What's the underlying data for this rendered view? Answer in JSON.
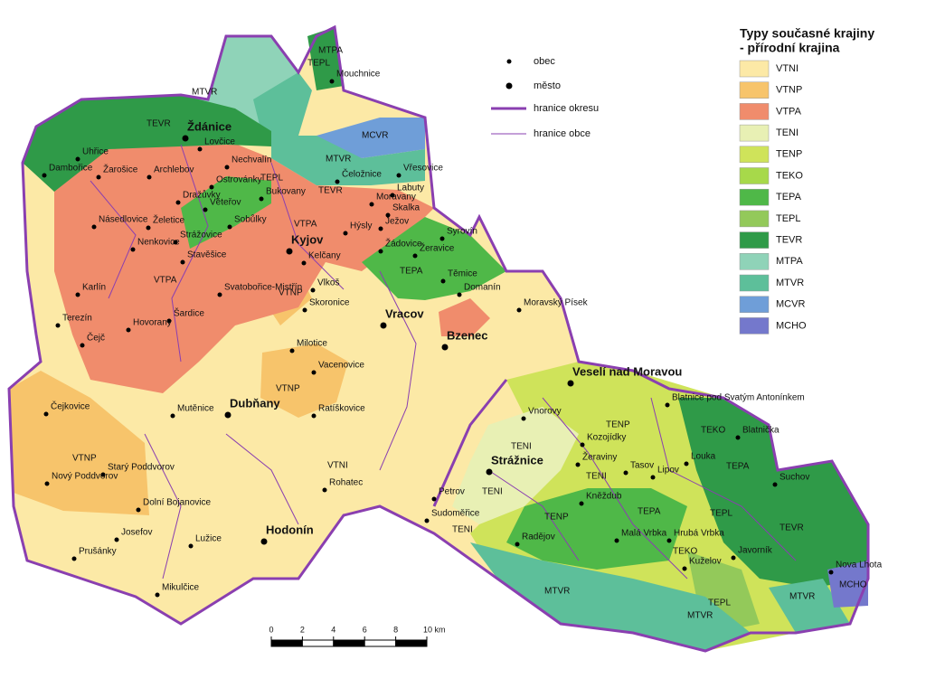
{
  "legend": {
    "title": "Typy současné krajiny",
    "subtitle": "- přírodní krajina",
    "items": [
      {
        "code": "VTNI",
        "color": "#fce9a6"
      },
      {
        "code": "VTNP",
        "color": "#f7c46b"
      },
      {
        "code": "VTPA",
        "color": "#f08c6c"
      },
      {
        "code": "TENI",
        "color": "#e8f0b4"
      },
      {
        "code": "TENP",
        "color": "#cfe35a"
      },
      {
        "code": "TEKO",
        "color": "#a7d94a"
      },
      {
        "code": "TEPA",
        "color": "#4fb848"
      },
      {
        "code": "TEPL",
        "color": "#93c95a"
      },
      {
        "code": "TEVR",
        "color": "#2f9a48"
      },
      {
        "code": "MTPA",
        "color": "#8fd3b8"
      },
      {
        "code": "MTVR",
        "color": "#5dbf9a"
      },
      {
        "code": "MCVR",
        "color": "#6f9ed8"
      },
      {
        "code": "MCHO",
        "color": "#7478cc"
      }
    ]
  },
  "symbols": [
    "obec",
    "město",
    "hranice okresu",
    "hranice obce"
  ],
  "towns": [
    "Ždánice",
    "Kyjov",
    "Vracov",
    "Bzenec",
    "Dubňany",
    "Veselí nad Moravou",
    "Strážnice",
    "Hodonín"
  ],
  "villages": [
    "Mouchnice",
    "Uhřice",
    "Lovčice",
    "Dambořice",
    "Žarošice",
    "Archlebov",
    "Nechvalín",
    "Čeložnice",
    "Vřesovice",
    "Ostrovánky",
    "Bukovany",
    "Labuty",
    "Dražůvky",
    "Věteřov",
    "Moravany",
    "Skalka",
    "Násedlovice",
    "Želetice",
    "Sobůlky",
    "Hýsly",
    "Ježov",
    "Syrovín",
    "Nenkovice",
    "Strážovice",
    "Žádovice",
    "Žeravice",
    "Stavěšice",
    "Kelčany",
    "Karlín",
    "Svatobořice-Mistřín",
    "Vlkoš",
    "Těmice",
    "Domanín",
    "Skoronice",
    "Moravský Písek",
    "Terezín",
    "Šardice",
    "Hovorany",
    "Čejč",
    "Milotice",
    "Vacenovice",
    "Ratíškovice",
    "Čejkovice",
    "Mutěnice",
    "Vnorovy",
    "Blatnice pod Svatým Antonínkem",
    "Blatnička",
    "Kozojídky",
    "Nový Poddvorov",
    "Starý Poddvorov",
    "Žeraviny",
    "Tasov",
    "Lipov",
    "Louka",
    "Suchov",
    "Petrov",
    "Dolní Bojanovice",
    "Rohatec",
    "Kněždub",
    "Sudoměřice",
    "Josefov",
    "Lužice",
    "Prušánky",
    "Radějov",
    "Malá Vrbka",
    "Hrubá Vrbka",
    "Javorník",
    "Kuželov",
    "Nova Lhota",
    "Mikulčice"
  ],
  "zones": [
    "MTPA",
    "TEPL",
    "MTVR",
    "TEVR",
    "MCVR",
    "MTVR",
    "TEPL",
    "TEVR",
    "VTPA",
    "VTPA",
    "TEPA",
    "VTNP",
    "VTNP",
    "VTNP",
    "TENP",
    "TENI",
    "TEKO",
    "TEPA",
    "TENI",
    "TENI",
    "TENI",
    "TENP",
    "TEPA",
    "TEPL",
    "TEVR",
    "TEKO",
    "TEPL",
    "MTVR",
    "MTVR",
    "MTVR",
    "MCHO",
    "VTNI"
  ],
  "scale_bar": {
    "ticks": [
      0,
      2,
      4,
      6,
      8,
      {
        "value": 10,
        "label": "10 km"
      }
    ]
  }
}
